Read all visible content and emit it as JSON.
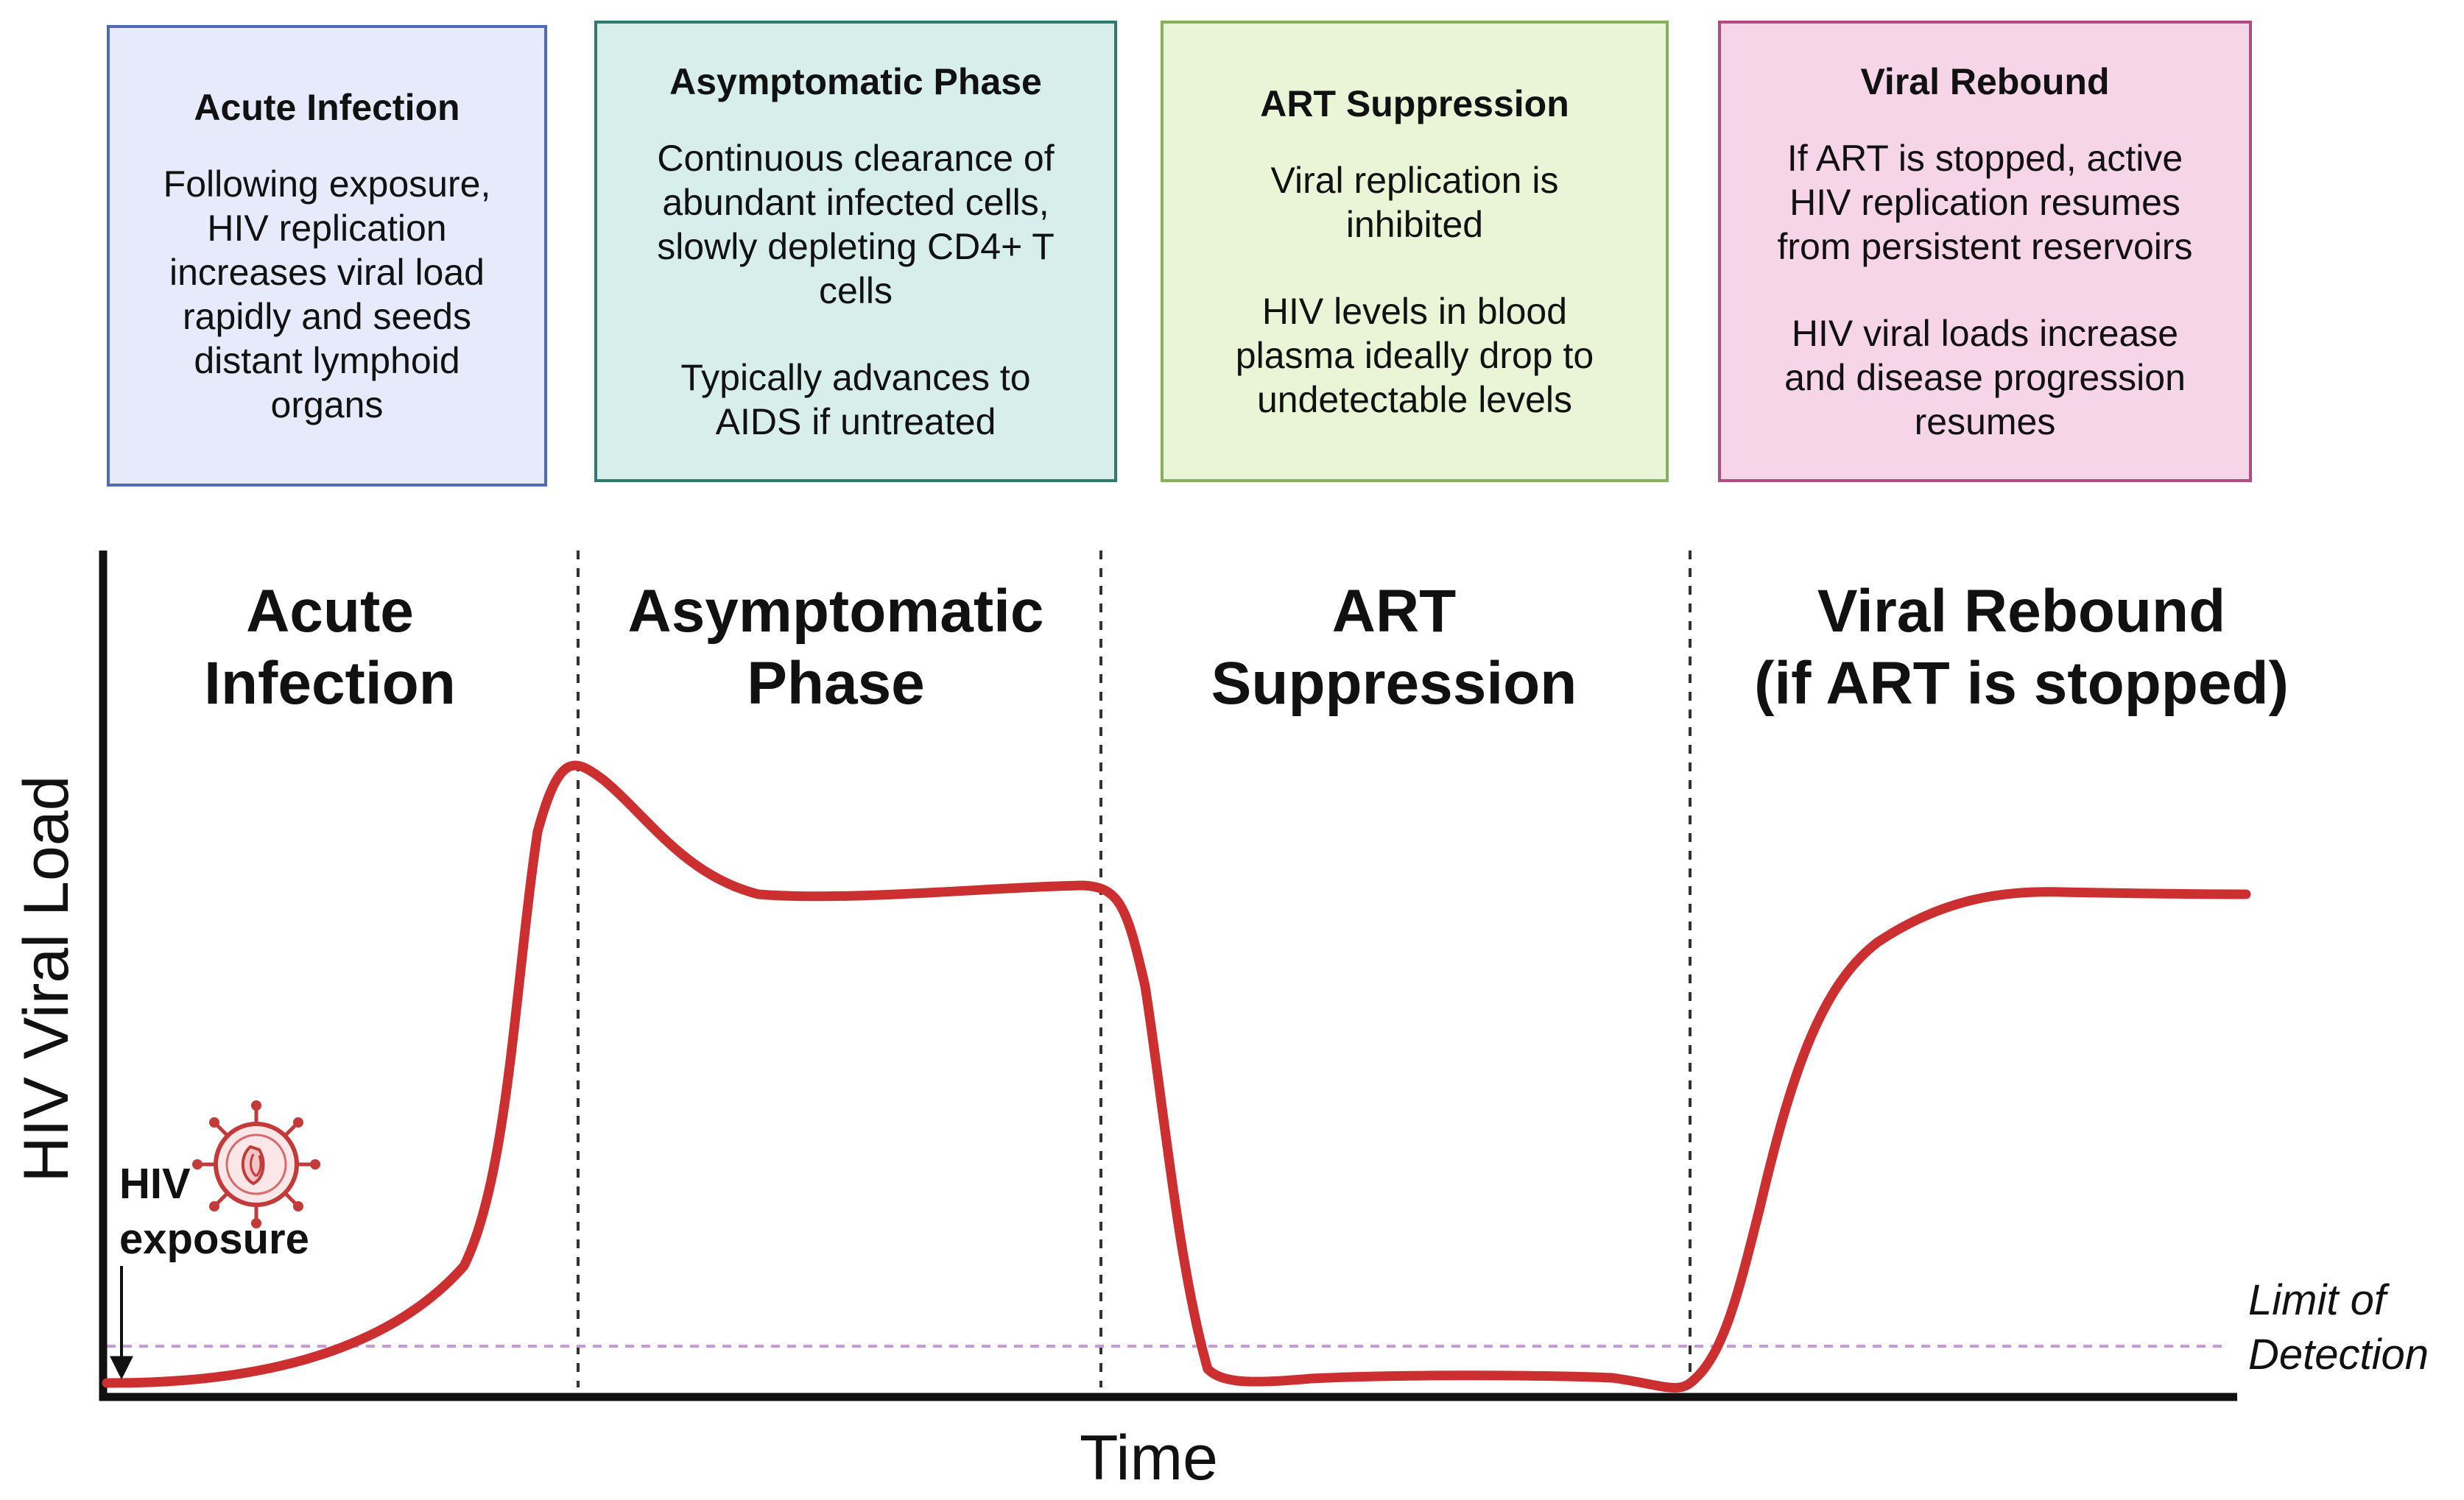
{
  "boxes": {
    "acute": {
      "title": "Acute Infection",
      "text": "Following exposure,\nHIV replication\nincreases viral load\nrapidly and seeds\ndistant lymphoid\norgans"
    },
    "asymptomatic": {
      "title": "Asymptomatic Phase",
      "text1": "Continuous clearance of\nabundant infected cells,\nslowly depleting CD4+ T\ncells",
      "text2": "Typically advances to\nAIDS if untreated"
    },
    "art": {
      "title": "ART Suppression",
      "text1": "Viral replication is\ninhibited",
      "text2": "HIV levels in blood\nplasma ideally drop to\nundetectable levels"
    },
    "rebound": {
      "title": "Viral Rebound",
      "text1": "If ART is stopped, active\nHIV replication resumes\nfrom persistent reservoirs",
      "text2": "HIV viral loads increase\nand disease progression\nresumes"
    }
  },
  "chart_data": {
    "type": "line",
    "ylabel": "HIV Viral Load",
    "xlabel": "Time",
    "phases": [
      {
        "line1": "Acute",
        "line2": "Infection"
      },
      {
        "line1": "Asymptomatic",
        "line2": "Phase"
      },
      {
        "line1": "ART",
        "line2": "Suppression"
      },
      {
        "line1": "Viral Rebound",
        "line2": "(if ART is stopped)"
      }
    ],
    "exposure_label": {
      "line1": "HIV",
      "line2": "exposure"
    },
    "threshold": {
      "line1": "Limit of",
      "line2": "Detection",
      "style": "dashed",
      "color": "#c79ad8"
    },
    "curve_color": "#cc2f2f"
  }
}
